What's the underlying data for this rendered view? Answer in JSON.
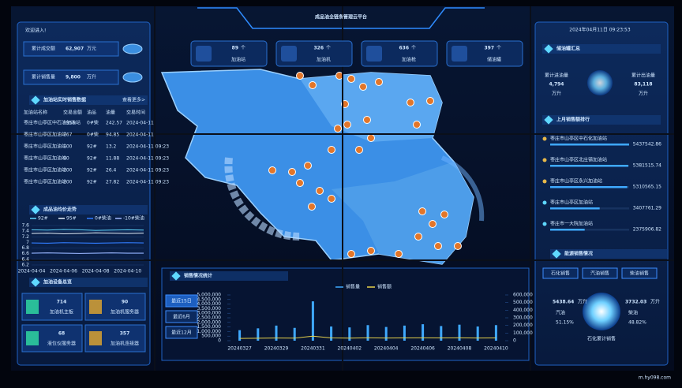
{
  "header": {
    "title": "成品油全链条管理云平台",
    "datetime": "2024年04月11日 09:23:53"
  },
  "welcome": "欢迎进入!",
  "summary": [
    {
      "label": "累计成交额",
      "value": "62,907",
      "unit": "万元"
    },
    {
      "label": "累计销售量",
      "value": "9,800",
      "unit": "万升"
    }
  ],
  "station_sales": {
    "title": "加油站实时销售数据",
    "more": "查看更多>",
    "columns": [
      "加油站名称",
      "交易金额",
      "油品",
      "油量",
      "交易时间"
    ],
    "rows": [
      [
        "枣庄市山亭区中石油加油站",
        "1956",
        "0#柴",
        "242.57",
        "2024-04-11"
      ],
      [
        "枣庄市山亭区加油站",
        "767",
        "0#柴",
        "94.85",
        "2024-04-11"
      ],
      [
        "枣庄市山亭区加油站",
        "100",
        "92#",
        "13.2",
        "2024-04-11 09:23"
      ],
      [
        "枣庄市山亭区加油站",
        "90",
        "92#",
        "11.88",
        "2024-04-11 09:23"
      ],
      [
        "枣庄市山亭区加油站",
        "200",
        "92#",
        "26.4",
        "2024-04-11 09:23"
      ],
      [
        "枣庄市山亭区加油站",
        "200",
        "92#",
        "27.82",
        "2024-04-11 09:23"
      ]
    ]
  },
  "price_trend": {
    "title": "成品油均价走势",
    "categories": [
      "2024-04-04",
      null,
      "2024-04-06",
      null,
      "2024-04-08",
      null,
      "2024-04-10",
      null
    ],
    "series": [
      {
        "name": "92#",
        "color": "#5fd8ff",
        "values": [
          7.45,
          7.44,
          7.46,
          7.45,
          7.43,
          7.44,
          7.45,
          7.44
        ]
      },
      {
        "name": "95#",
        "color": "#e8f4ff",
        "values": [
          7.32,
          7.33,
          7.31,
          7.32,
          7.34,
          7.33,
          7.32,
          7.33
        ]
      },
      {
        "name": "0#柴油",
        "color": "#2f7bff",
        "values": [
          6.98,
          6.97,
          6.99,
          6.98,
          6.97,
          6.98,
          6.99,
          6.98
        ]
      },
      {
        "name": "-10#柴油",
        "color": "#9fb8ff",
        "values": [
          6.62,
          6.63,
          6.62,
          6.61,
          6.62,
          6.63,
          6.62,
          6.62
        ]
      }
    ],
    "ylim": [
      6.2,
      7.6
    ],
    "yticks": [
      6.2,
      6.4,
      6.6,
      6.8,
      7,
      7.2,
      7.4,
      7.6
    ]
  },
  "devices": {
    "title": "加油设备总览",
    "items": [
      {
        "value": 714,
        "label": "加油机主板"
      },
      {
        "value": 90,
        "label": "加油机服务器"
      },
      {
        "value": 68,
        "label": "液位仪服务器"
      },
      {
        "value": 357,
        "label": "加油机连接器"
      }
    ]
  },
  "counts": [
    {
      "value": 89,
      "unit": "个",
      "label": "加油站"
    },
    {
      "value": 326,
      "unit": "个",
      "label": "加油机"
    },
    {
      "value": 636,
      "unit": "个",
      "label": "加油枪"
    },
    {
      "value": 397,
      "unit": "个",
      "label": "储油罐"
    }
  ],
  "tank_summary": {
    "title": "储油罐汇总",
    "items": [
      {
        "label": "累计进油量",
        "value": "4,794",
        "unit": "万升"
      },
      {
        "label": "累计出油量",
        "value": "83,118",
        "unit": "万升"
      }
    ]
  },
  "ranking": {
    "title": "上月销售额排行",
    "items": [
      {
        "name": "枣庄市山亭区中石化加油站",
        "value": 5437542.86
      },
      {
        "name": "枣庄市山亭区北庄镇加油站",
        "value": 5381515.74
      },
      {
        "name": "枣庄市山亭区永兴加油站",
        "value": 5310565.15
      },
      {
        "name": "枣庄市山亭区加油站",
        "value": 3407761.29
      },
      {
        "name": "枣庄市一大院加油站",
        "value": 2375906.82
      }
    ]
  },
  "energy": {
    "title": "能源销售情况",
    "tabs": [
      "石化销售",
      "汽油销售",
      "柴油销售"
    ],
    "left": {
      "value": "5438.64",
      "unit": "万升",
      "label": "汽油",
      "percent": "51.15%"
    },
    "right": {
      "value": "3732.03",
      "unit": "万升",
      "label": "柴油",
      "percent": "48.82%"
    },
    "center": "石化累计销售"
  },
  "sales_stats": {
    "title": "销售情况统计",
    "tabs": [
      "最近15日",
      "最近6月",
      "最近12月"
    ],
    "categories": [
      "20240327",
      null,
      "20240329",
      null,
      "20240331",
      null,
      "20240402",
      null,
      "20240404",
      null,
      "20240406",
      null,
      "20240408",
      null,
      "20240410"
    ],
    "series": [
      {
        "name": "销售量",
        "color": "#3fa9ff",
        "values": [
          1150000,
          1350000,
          1650000,
          1400000,
          4300000,
          1550000,
          1450000,
          1700000,
          1500000,
          1650000,
          1800000,
          1600000,
          1750000,
          1550000,
          1700000
        ]
      },
      {
        "name": "销售额",
        "color": "#e6d14a",
        "axis": "y2",
        "values": [
          30000,
          32000,
          35000,
          33000,
          60000,
          36000,
          34000,
          37000,
          35000,
          36000,
          38000,
          36000,
          37000,
          35000,
          36000
        ]
      }
    ],
    "ylim": [
      0,
      5000000
    ],
    "yticks": [
      {
        "value": 0,
        "label": "0"
      },
      {
        "value": 500000,
        "label": "500,000"
      },
      {
        "value": 1000000,
        "label": "1,000,000"
      },
      {
        "value": 1500000,
        "label": "1,500,000"
      },
      {
        "value": 2000000,
        "label": "2,000,000"
      },
      {
        "value": 2500000,
        "label": "2,500,000"
      },
      {
        "value": 3000000,
        "label": "3,000,000"
      },
      {
        "value": 3500000,
        "label": "3,500,000"
      },
      {
        "value": 4000000,
        "label": "4,000,000"
      },
      {
        "value": 4500000,
        "label": "4,500,000"
      },
      {
        "value": 5000000,
        "label": "5,000,000"
      }
    ],
    "y2lim": [
      0,
      600000
    ],
    "y2ticks": [
      {
        "value": 0,
        "label": "0"
      },
      {
        "value": 100000,
        "label": "100,000"
      },
      {
        "value": 200000,
        "label": "200,000"
      },
      {
        "value": 300000,
        "label": "300,000"
      },
      {
        "value": 400000,
        "label": "400,000"
      },
      {
        "value": 500000,
        "label": "500,000"
      },
      {
        "value": 600000,
        "label": "600,000"
      }
    ]
  },
  "watermark": "m.hy098.com"
}
